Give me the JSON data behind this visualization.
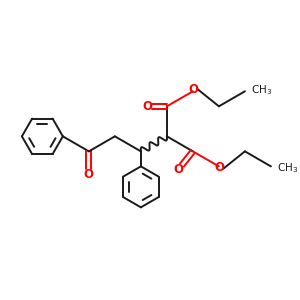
{
  "background_color": "#ffffff",
  "bond_color": "#1a1a1a",
  "oxygen_color": "#ff0000",
  "line_width": 1.4,
  "figsize": [
    3.0,
    3.0
  ],
  "dpi": 100,
  "xlim": [
    0,
    10
  ],
  "ylim": [
    0,
    10
  ]
}
